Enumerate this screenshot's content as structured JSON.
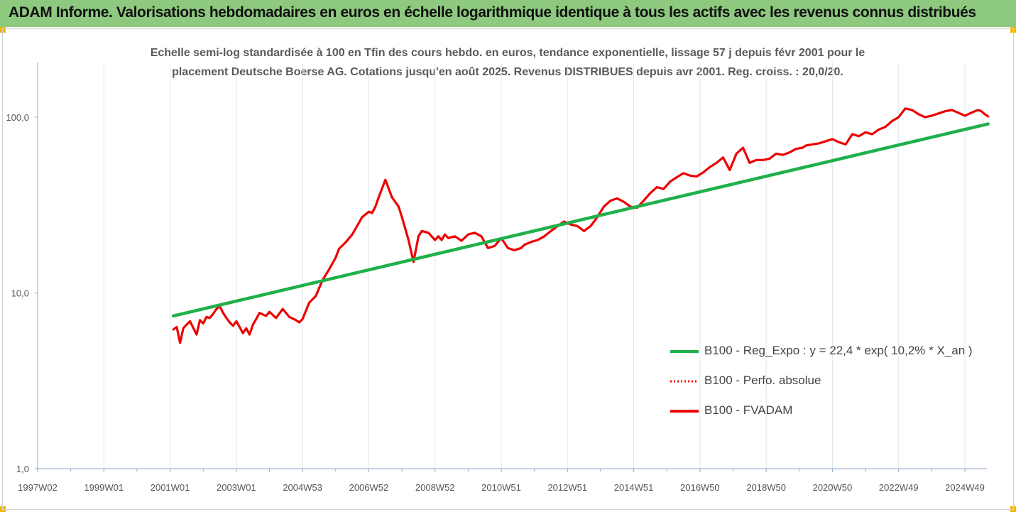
{
  "header": {
    "title": "ADAM Informe. Valorisations hebdomadaires en euros en échelle logarithmique identique à tous les actifs avec les revenus connus distribués"
  },
  "colors": {
    "header_bg": "#8dc97f",
    "corner": "#f2b800",
    "trend": "#1fb04a",
    "series": "#ee0000",
    "grid": "#dfe6ee",
    "axis": "#8faac8"
  },
  "chart_data": {
    "type": "line",
    "title_line1": "Echelle semi-log standardisée à 100 en Tfin des cours hebdo. en euros, tendance exponentielle, lissage 57 j depuis févr 2001 pour le",
    "title_line2": "placement Deutsche Boerse AG. Cotations jusqu'en août 2025. Revenus DISTRIBUES depuis avr 2001. Reg. croiss. : 20,0/20.",
    "y_scale": "log",
    "ylim": [
      1,
      200
    ],
    "xlim": [
      1997.0,
      2025.7
    ],
    "y_ticks": [
      {
        "value": 1,
        "label": "1,0"
      },
      {
        "value": 10,
        "label": "10,0"
      },
      {
        "value": 100,
        "label": "100,0"
      }
    ],
    "x_ticks": [
      {
        "value": 1997.0,
        "label": "1997W02"
      },
      {
        "value": 1999.0,
        "label": "1999W01"
      },
      {
        "value": 2001.0,
        "label": "2001W01"
      },
      {
        "value": 2003.0,
        "label": "2003W01"
      },
      {
        "value": 2005.0,
        "label": "2004W53"
      },
      {
        "value": 2007.0,
        "label": "2006W52"
      },
      {
        "value": 2009.0,
        "label": "2008W52"
      },
      {
        "value": 2011.0,
        "label": "2010W51"
      },
      {
        "value": 2013.0,
        "label": "2012W51"
      },
      {
        "value": 2015.0,
        "label": "2014W51"
      },
      {
        "value": 2017.0,
        "label": "2016W50"
      },
      {
        "value": 2019.0,
        "label": "2018W50"
      },
      {
        "value": 2021.0,
        "label": "2020W50"
      },
      {
        "value": 2023.0,
        "label": "2022W49"
      },
      {
        "value": 2025.0,
        "label": "2024W49"
      }
    ],
    "grid": "vertical",
    "legend_position": "bottom-right",
    "series": [
      {
        "name": "B100 - Reg_Expo : y = 22,4 * exp( 10,2% *  X_an )",
        "style": "solid-green",
        "x": [
          2001.1,
          2025.7
        ],
        "y": [
          7.4,
          91.5
        ]
      },
      {
        "name": "B100 - Perfo. absolue",
        "style": "dotted-red",
        "x": [],
        "y": []
      },
      {
        "name": "B100 - FVADAM",
        "style": "solid-red",
        "x": [
          2001.1,
          2001.2,
          2001.3,
          2001.4,
          2001.5,
          2001.6,
          2001.8,
          2001.9,
          2002.0,
          2002.1,
          2002.2,
          2002.3,
          2002.4,
          2002.5,
          2002.6,
          2002.7,
          2002.8,
          2002.9,
          2003.0,
          2003.1,
          2003.2,
          2003.3,
          2003.4,
          2003.5,
          2003.6,
          2003.7,
          2003.9,
          2004.0,
          2004.2,
          2004.4,
          2004.5,
          2004.6,
          2004.8,
          2004.9,
          2005.0,
          2005.2,
          2005.4,
          2005.6,
          2005.8,
          2006.0,
          2006.1,
          2006.3,
          2006.5,
          2006.7,
          2006.8,
          2007.0,
          2007.1,
          2007.2,
          2007.3,
          2007.5,
          2007.7,
          2007.9,
          2008.0,
          2008.2,
          2008.35,
          2008.5,
          2008.6,
          2008.8,
          2009.0,
          2009.1,
          2009.2,
          2009.3,
          2009.4,
          2009.6,
          2009.8,
          2010.0,
          2010.2,
          2010.4,
          2010.6,
          2010.8,
          2011.0,
          2011.2,
          2011.4,
          2011.6,
          2011.7,
          2011.9,
          2012.1,
          2012.3,
          2012.5,
          2012.7,
          2012.9,
          2013.1,
          2013.3,
          2013.5,
          2013.7,
          2013.9,
          2014.1,
          2014.3,
          2014.5,
          2014.7,
          2014.9,
          2015.1,
          2015.3,
          2015.5,
          2015.7,
          2015.9,
          2016.1,
          2016.3,
          2016.5,
          2016.7,
          2016.9,
          2017.1,
          2017.3,
          2017.5,
          2017.7,
          2017.9,
          2018.1,
          2018.3,
          2018.5,
          2018.7,
          2018.9,
          2019.1,
          2019.3,
          2019.5,
          2019.7,
          2019.9,
          2020.1,
          2020.2,
          2020.4,
          2020.6,
          2020.8,
          2021.0,
          2021.2,
          2021.4,
          2021.6,
          2021.8,
          2022.0,
          2022.2,
          2022.4,
          2022.6,
          2022.8,
          2023.0,
          2023.2,
          2023.4,
          2023.6,
          2023.8,
          2024.0,
          2024.2,
          2024.4,
          2024.6,
          2024.8,
          2025.0,
          2025.1,
          2025.2,
          2025.3,
          2025.4,
          2025.5,
          2025.6,
          2025.7
        ],
        "y": [
          6.2,
          6.4,
          5.2,
          6.3,
          6.6,
          6.9,
          5.8,
          7.0,
          6.7,
          7.3,
          7.2,
          7.6,
          8.1,
          8.4,
          7.7,
          7.2,
          6.8,
          6.5,
          6.9,
          6.4,
          5.9,
          6.3,
          5.8,
          6.6,
          7.1,
          7.7,
          7.4,
          7.8,
          7.2,
          8.1,
          7.7,
          7.3,
          7.0,
          6.8,
          7.1,
          8.8,
          9.6,
          11.8,
          13.6,
          15.9,
          17.8,
          19.4,
          21.5,
          25.0,
          27.0,
          29.0,
          28.5,
          31.0,
          35.0,
          44.0,
          35.0,
          31.0,
          27.0,
          20.0,
          15.0,
          21.0,
          22.5,
          22.0,
          20.0,
          21.0,
          20.0,
          21.5,
          20.5,
          21.0,
          19.8,
          21.5,
          22.0,
          21.0,
          18.0,
          18.5,
          20.5,
          18.0,
          17.5,
          18.0,
          18.8,
          19.5,
          20.0,
          21.0,
          22.5,
          24.0,
          25.5,
          24.5,
          24.0,
          22.5,
          24.0,
          27.0,
          31.0,
          33.5,
          34.5,
          33.0,
          31.0,
          30.5,
          33.5,
          37.0,
          40.0,
          39.0,
          43.0,
          45.5,
          48.0,
          46.5,
          46.0,
          48.5,
          52.0,
          55.0,
          59.0,
          50.0,
          62.0,
          67.0,
          55.0,
          57.0,
          57.0,
          58.0,
          62.0,
          61.0,
          63.0,
          66.0,
          67.0,
          69.0,
          70.0,
          71.0,
          73.0,
          75.0,
          72.0,
          70.0,
          80.0,
          78.0,
          82.0,
          80.0,
          85.0,
          88.0,
          95.0,
          100.0,
          112.0,
          110.0,
          104.0,
          100.0,
          102.0,
          105.0,
          108.0,
          110.0,
          106.0,
          102.0,
          104.0,
          106.0,
          108.0,
          110.0,
          108.0,
          104.0,
          101.0
        ]
      }
    ]
  }
}
